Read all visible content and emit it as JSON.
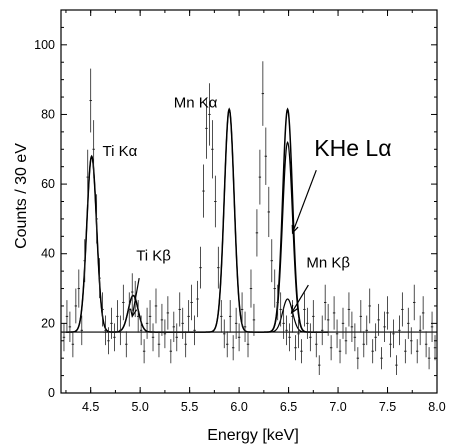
{
  "chart_data": {
    "type": "line",
    "title": "",
    "xlabel": "Energy [keV]",
    "ylabel": "Counts / 30 eV",
    "xlim": [
      4.2,
      8.0
    ],
    "ylim": [
      0,
      110
    ],
    "xticks": [
      4.5,
      5.0,
      5.5,
      6.0,
      6.5,
      7.0,
      7.5,
      8.0
    ],
    "xtick_labels": [
      "4.5",
      "5.0",
      "5.5",
      "6.0",
      "6.5",
      "7.0",
      "7.5",
      "8.0"
    ],
    "yticks": [
      0,
      20,
      40,
      60,
      80,
      100
    ],
    "ytick_labels": [
      "0",
      "20",
      "40",
      "60",
      "80",
      "100"
    ],
    "grid": false,
    "legend": "none",
    "background_level": 17.5,
    "line_color": "#000000",
    "components": [
      {
        "line": "Ti Kα",
        "center": 4.51,
        "amplitude": 50.5,
        "sigma": 0.05
      },
      {
        "line": "Ti Kβ",
        "center": 4.93,
        "amplitude": 10.5,
        "sigma": 0.05
      },
      {
        "line": "Mn Kα",
        "center": 5.9,
        "amplitude": 64.0,
        "sigma": 0.05
      },
      {
        "line": "Mn Kβ",
        "center": 6.49,
        "amplitude": 9.5,
        "sigma": 0.05
      },
      {
        "line": "KHe Lα",
        "center": 6.49,
        "amplitude": 54.5,
        "sigma": 0.05
      }
    ],
    "data_points": {
      "x": [
        4.23,
        4.26,
        4.29,
        4.32,
        4.35,
        4.38,
        4.41,
        4.44,
        4.47,
        4.5,
        4.53,
        4.56,
        4.59,
        4.62,
        4.65,
        4.68,
        4.71,
        4.74,
        4.77,
        4.8,
        4.83,
        4.86,
        4.89,
        4.92,
        4.95,
        4.98,
        5.01,
        5.04,
        5.07,
        5.1,
        5.13,
        5.16,
        5.19,
        5.22,
        5.25,
        5.28,
        5.31,
        5.34,
        5.37,
        5.4,
        5.43,
        5.46,
        5.49,
        5.52,
        5.55,
        5.58,
        5.61,
        5.64,
        5.67,
        5.7,
        5.73,
        5.76,
        5.79,
        5.82,
        5.85,
        5.88,
        5.91,
        5.94,
        5.97,
        6.0,
        6.03,
        6.06,
        6.09,
        6.12,
        6.15,
        6.18,
        6.21,
        6.24,
        6.27,
        6.3,
        6.33,
        6.36,
        6.39,
        6.42,
        6.45,
        6.48,
        6.51,
        6.54,
        6.57,
        6.6,
        6.63,
        6.66,
        6.69,
        6.72,
        6.75,
        6.78,
        6.81,
        6.84,
        6.87,
        6.9,
        6.93,
        6.96,
        6.99,
        7.02,
        7.05,
        7.08,
        7.11,
        7.14,
        7.17,
        7.2,
        7.23,
        7.26,
        7.29,
        7.32,
        7.35,
        7.38,
        7.41,
        7.44,
        7.47,
        7.5,
        7.53,
        7.56,
        7.59,
        7.62,
        7.65,
        7.68,
        7.71,
        7.74,
        7.77,
        7.8,
        7.83,
        7.86,
        7.89,
        7.92,
        7.95,
        7.98
      ],
      "y": [
        16,
        22,
        19,
        14,
        25,
        30,
        18,
        38,
        62,
        84,
        70,
        50,
        33,
        24,
        18,
        15,
        20,
        16,
        22,
        18,
        26,
        14,
        24,
        29,
        27,
        22,
        18,
        12,
        20,
        22,
        16,
        25,
        14,
        21,
        17,
        23,
        12,
        19,
        16,
        24,
        20,
        14,
        22,
        26,
        18,
        27,
        36,
        58,
        76,
        80,
        70,
        55,
        36,
        22,
        17,
        14,
        22,
        13,
        20,
        16,
        24,
        19,
        14,
        30,
        21,
        46,
        62,
        86,
        68,
        52,
        38,
        30,
        26,
        24,
        20,
        18,
        16,
        22,
        13,
        17,
        12,
        24,
        20,
        16,
        22,
        14,
        8,
        18,
        26,
        21,
        13,
        23,
        17,
        12,
        20,
        15,
        24,
        19,
        16,
        10,
        22,
        14,
        18,
        25,
        12,
        16,
        21,
        10,
        19,
        23,
        14,
        17,
        8,
        18,
        24,
        12,
        20,
        15,
        26,
        12,
        18,
        23,
        14,
        10,
        19,
        13
      ]
    },
    "annotations": [
      {
        "text": "Ti Kα",
        "x": 4.62,
        "y": 68
      },
      {
        "text": "Mn Kα",
        "x": 5.34,
        "y": 82
      },
      {
        "text": "KHe Lα",
        "x": 6.76,
        "y": 68
      },
      {
        "text": "Ti Kβ",
        "x": 4.96,
        "y": 38
      },
      {
        "text": "Mn Kβ",
        "x": 6.68,
        "y": 36
      }
    ],
    "arrows": [
      {
        "from": [
          6.78,
          64
        ],
        "to": [
          6.54,
          46
        ]
      },
      {
        "from": [
          4.99,
          33
        ],
        "to": [
          4.92,
          22
        ]
      },
      {
        "from": [
          6.7,
          31
        ],
        "to": [
          6.53,
          23
        ]
      }
    ]
  }
}
